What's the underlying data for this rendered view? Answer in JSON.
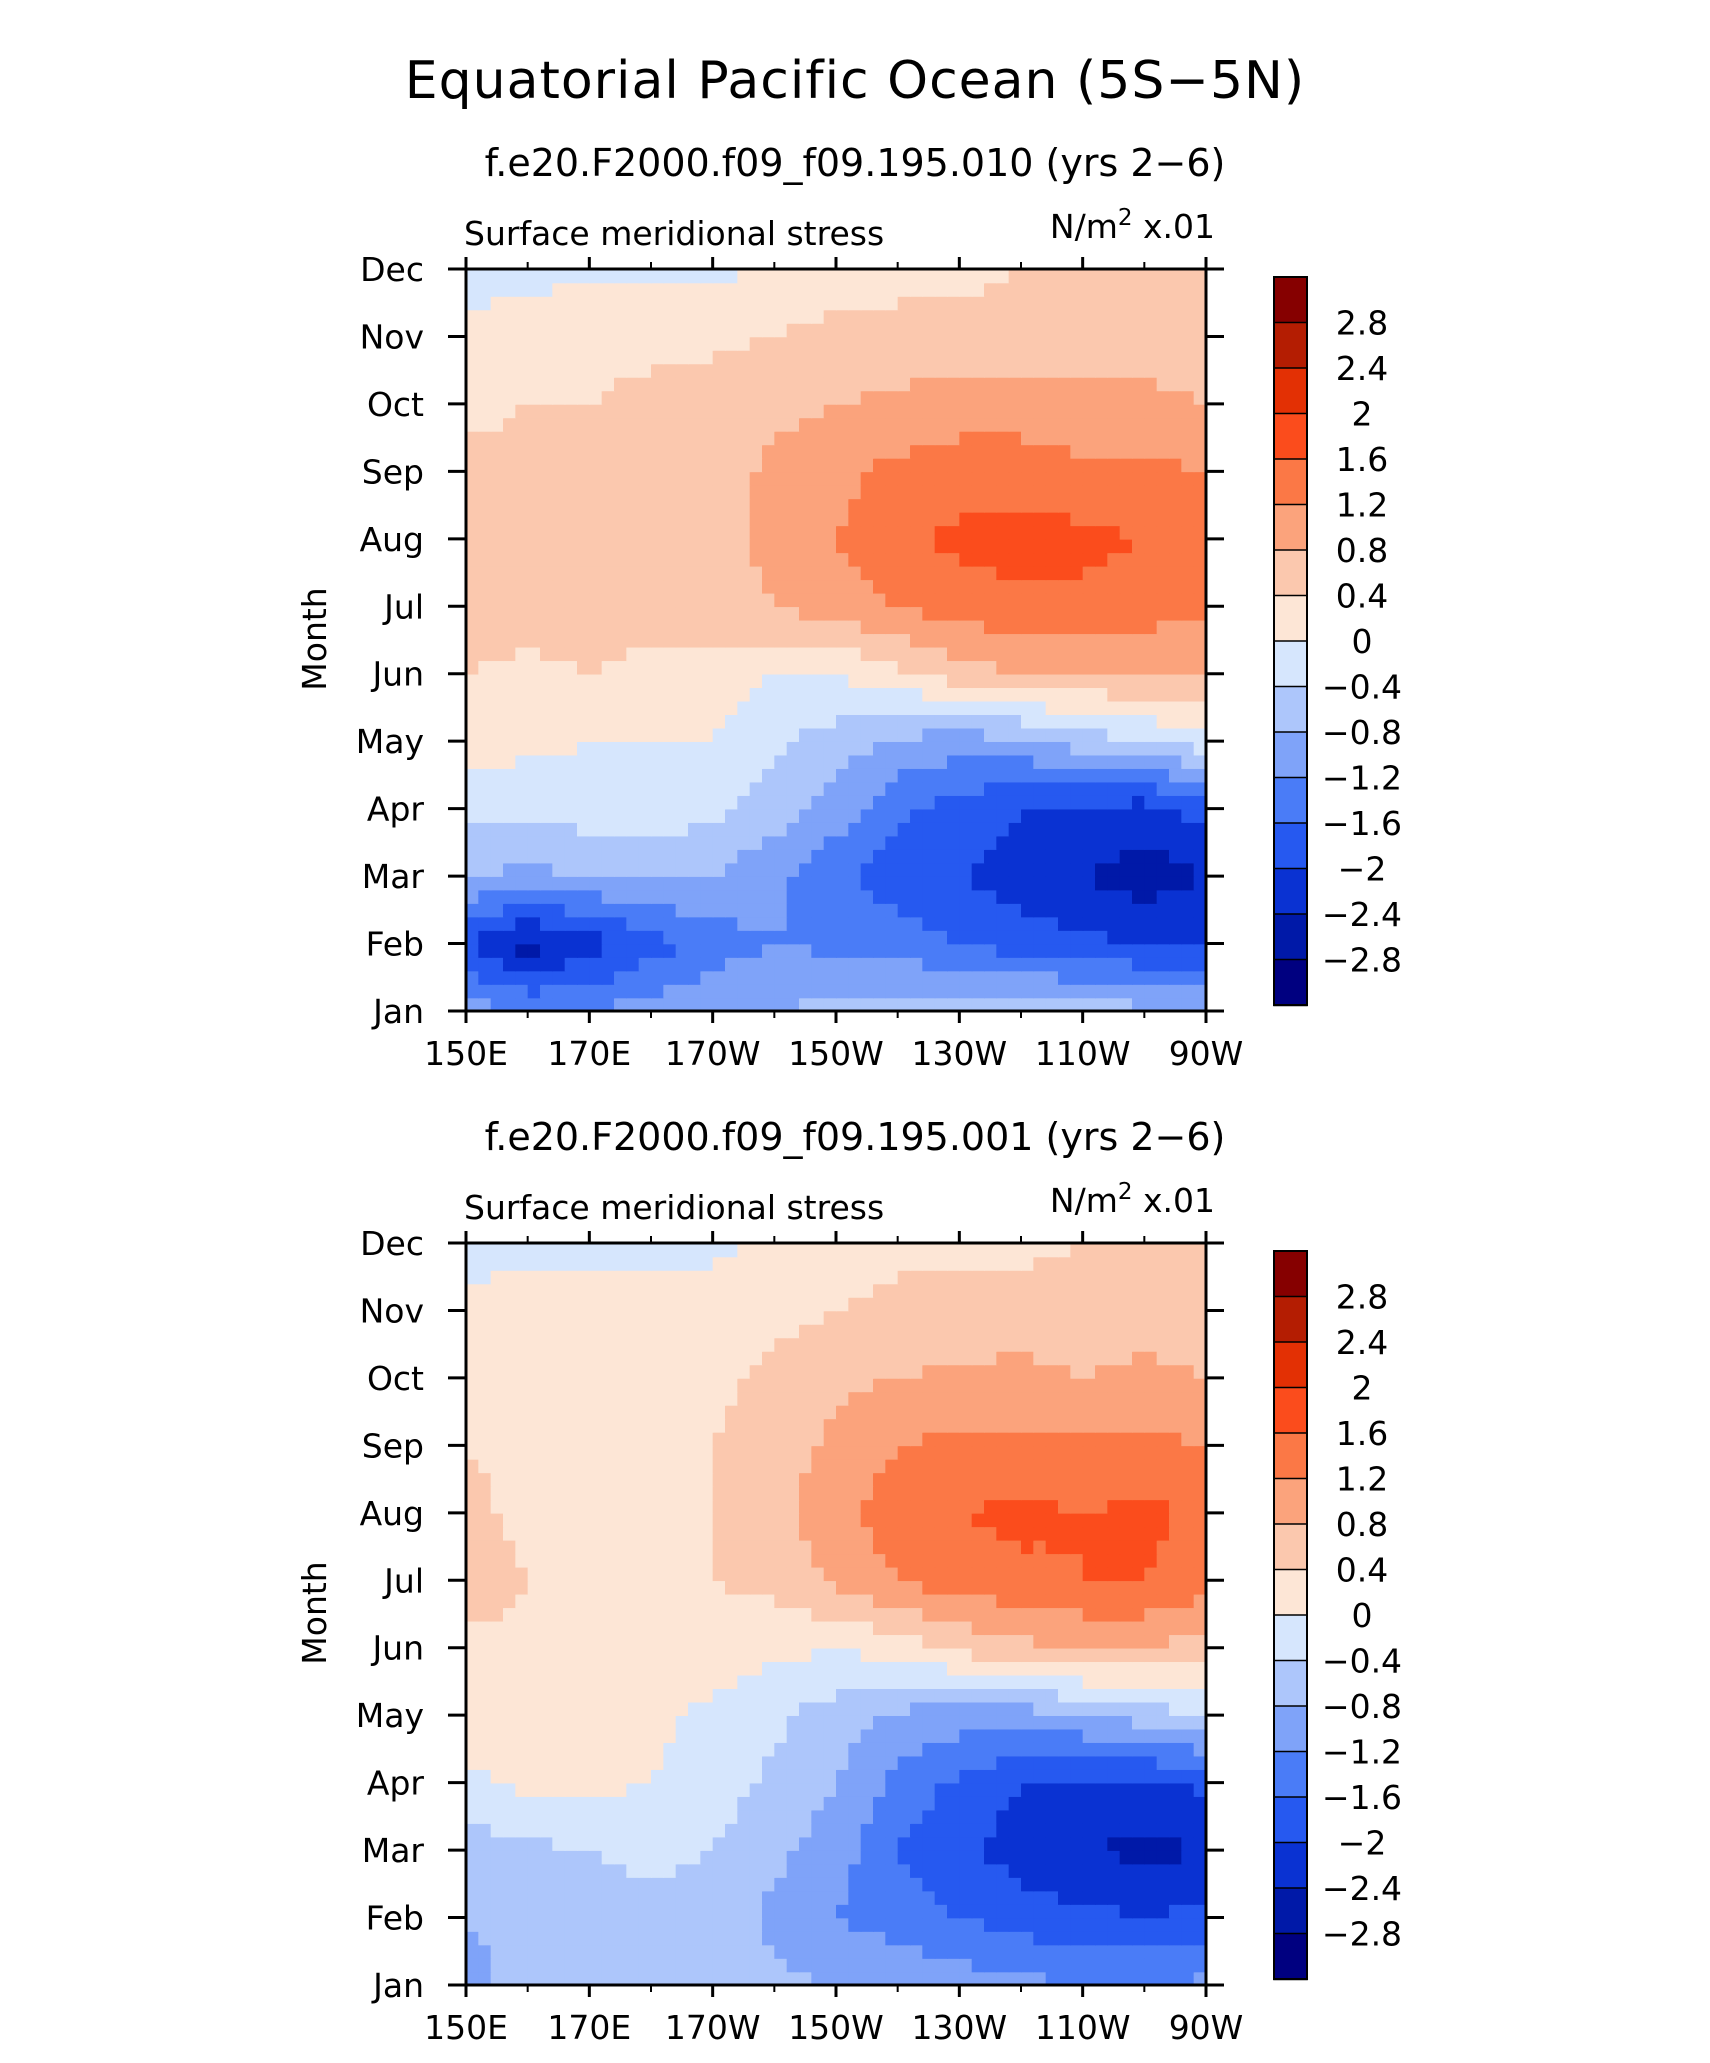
{
  "title": "Equatorial Pacific Ocean (5S−5N)",
  "colors": {
    "levels": [
      "#000080",
      "#0019a8",
      "#0a32d2",
      "#2659f0",
      "#4a7cf7",
      "#7fa3f9",
      "#adc6fb",
      "#d6e6fd",
      "#fde6d6",
      "#fbc8ae",
      "#fba37c",
      "#fb7846",
      "#fb4c1c",
      "#e33004",
      "#b41d02",
      "#860000"
    ]
  },
  "chart_data": [
    {
      "type": "heatmap",
      "title": "f.e20.F2000.f09_f09.195.010 (yrs 2−6)",
      "left_label": "Surface meridional stress",
      "units_prefix": "N/m",
      "units_sup": "2",
      "units_suffix": " x.01",
      "ylabel": "Month",
      "x_ticks": [
        "150E",
        "170E",
        "170W",
        "150W",
        "130W",
        "110W",
        "90W"
      ],
      "y_ticks": [
        "Jan",
        "Feb",
        "Mar",
        "Apr",
        "May",
        "Jun",
        "Jul",
        "Aug",
        "Sep",
        "Oct",
        "Nov",
        "Dec"
      ],
      "xlim": [
        150,
        270
      ],
      "ylim": [
        1,
        12
      ],
      "colorbar_labels": [
        "2.8",
        "2.4",
        "2",
        "1.6",
        "1.2",
        "0.8",
        "0.4",
        "0",
        "−0.4",
        "−0.8",
        "−1.2",
        "−1.6",
        "−2",
        "−2.4",
        "−2.8"
      ],
      "x": [
        150,
        160,
        170,
        180,
        190,
        200,
        210,
        220,
        230,
        240,
        250,
        260,
        270
      ],
      "y": [
        1,
        2,
        3,
        4,
        5,
        6,
        7,
        8,
        9,
        10,
        11,
        12
      ],
      "values": [
        [
          -1.0,
          -1.2,
          -1.2,
          -1.0,
          -0.9,
          -0.8,
          -0.7,
          -0.6,
          -0.5,
          -0.5,
          -0.6,
          -0.7,
          -0.8
        ],
        [
          -2.0,
          -2.6,
          -2.2,
          -1.8,
          -1.4,
          -1.2,
          -1.3,
          -1.4,
          -1.6,
          -1.8,
          -1.9,
          -2.0,
          -2.0
        ],
        [
          -0.8,
          -0.9,
          -0.8,
          -0.7,
          -0.8,
          -1.1,
          -1.5,
          -1.8,
          -2.0,
          -2.2,
          -2.4,
          -2.6,
          -2.4
        ],
        [
          -0.3,
          -0.3,
          -0.2,
          -0.2,
          -0.3,
          -0.6,
          -1.0,
          -1.5,
          -1.8,
          -2.0,
          -2.1,
          -2.2,
          -1.8
        ],
        [
          0.2,
          0.1,
          0.0,
          0.0,
          0.0,
          -0.3,
          -0.6,
          -0.9,
          -1.0,
          -0.9,
          -0.6,
          -0.4,
          -0.2
        ],
        [
          0.4,
          0.3,
          0.4,
          0.3,
          0.2,
          0.0,
          0.0,
          0.3,
          0.6,
          0.8,
          0.8,
          0.8,
          0.8
        ],
        [
          0.6,
          0.6,
          0.6,
          0.5,
          0.6,
          0.8,
          1.0,
          1.2,
          1.4,
          1.5,
          1.5,
          1.4,
          1.3
        ],
        [
          0.5,
          0.5,
          0.5,
          0.6,
          0.7,
          0.9,
          1.2,
          1.5,
          1.7,
          1.8,
          1.7,
          1.6,
          1.4
        ],
        [
          0.5,
          0.5,
          0.4,
          0.5,
          0.6,
          0.9,
          1.1,
          1.3,
          1.4,
          1.4,
          1.3,
          1.3,
          1.2
        ],
        [
          0.3,
          0.4,
          0.4,
          0.5,
          0.6,
          0.7,
          0.8,
          0.9,
          1.0,
          1.0,
          0.9,
          0.9,
          0.8
        ],
        [
          0.1,
          0.2,
          0.3,
          0.3,
          0.3,
          0.4,
          0.5,
          0.5,
          0.5,
          0.6,
          0.6,
          0.6,
          0.6
        ],
        [
          -0.2,
          -0.1,
          -0.1,
          -0.1,
          -0.1,
          0.1,
          0.2,
          0.3,
          0.3,
          0.4,
          0.5,
          0.5,
          0.5
        ]
      ]
    },
    {
      "type": "heatmap",
      "title": "f.e20.F2000.f09_f09.195.001 (yrs 2−6)",
      "left_label": "Surface meridional stress",
      "units_prefix": "N/m",
      "units_sup": "2",
      "units_suffix": " x.01",
      "ylabel": "Month",
      "x_ticks": [
        "150E",
        "170E",
        "170W",
        "150W",
        "130W",
        "110W",
        "90W"
      ],
      "y_ticks": [
        "Jan",
        "Feb",
        "Mar",
        "Apr",
        "May",
        "Jun",
        "Jul",
        "Aug",
        "Sep",
        "Oct",
        "Nov",
        "Dec"
      ],
      "xlim": [
        150,
        270
      ],
      "ylim": [
        1,
        12
      ],
      "colorbar_labels": [
        "2.8",
        "2.4",
        "2",
        "1.6",
        "1.2",
        "0.8",
        "0.4",
        "0",
        "−0.4",
        "−0.8",
        "−1.2",
        "−1.6",
        "−2",
        "−2.4",
        "−2.8"
      ],
      "x": [
        150,
        160,
        170,
        180,
        190,
        200,
        210,
        220,
        230,
        240,
        250,
        260,
        270
      ],
      "y": [
        1,
        2,
        3,
        4,
        5,
        6,
        7,
        8,
        9,
        10,
        11,
        12
      ],
      "values": [
        [
          -0.9,
          -0.7,
          -0.6,
          -0.5,
          -0.6,
          -0.7,
          -0.8,
          -0.9,
          -1.0,
          -1.1,
          -1.2,
          -1.2,
          -1.1
        ],
        [
          -0.8,
          -0.7,
          -0.6,
          -0.5,
          -0.6,
          -0.9,
          -1.2,
          -1.4,
          -1.6,
          -1.8,
          -1.9,
          -2.0,
          -1.9
        ],
        [
          -0.6,
          -0.5,
          -0.4,
          -0.3,
          -0.4,
          -0.7,
          -1.0,
          -1.6,
          -1.9,
          -2.2,
          -2.4,
          -2.5,
          -2.4
        ],
        [
          -0.1,
          0.1,
          0.1,
          0.0,
          -0.2,
          -0.5,
          -0.8,
          -1.3,
          -1.7,
          -2.0,
          -2.1,
          -2.1,
          -1.9
        ],
        [
          0.2,
          0.2,
          0.2,
          0.1,
          -0.1,
          -0.3,
          -0.6,
          -0.9,
          -1.0,
          -1.0,
          -0.8,
          -0.6,
          -0.4
        ],
        [
          0.3,
          0.3,
          0.3,
          0.3,
          0.2,
          0.1,
          0.0,
          0.2,
          0.5,
          0.7,
          0.8,
          0.8,
          0.6
        ],
        [
          0.6,
          0.4,
          0.3,
          0.3,
          0.4,
          0.5,
          0.9,
          1.2,
          1.4,
          1.5,
          1.6,
          1.6,
          1.4
        ],
        [
          0.5,
          0.3,
          0.3,
          0.3,
          0.4,
          0.6,
          1.1,
          1.4,
          1.6,
          1.7,
          1.6,
          1.7,
          1.5
        ],
        [
          0.4,
          0.3,
          0.3,
          0.3,
          0.4,
          0.6,
          0.9,
          1.2,
          1.3,
          1.3,
          1.3,
          1.3,
          1.2
        ],
        [
          0.2,
          0.2,
          0.2,
          0.3,
          0.3,
          0.5,
          0.7,
          0.8,
          0.9,
          0.9,
          0.8,
          0.9,
          0.8
        ],
        [
          0.1,
          0.2,
          0.2,
          0.2,
          0.2,
          0.3,
          0.4,
          0.5,
          0.5,
          0.6,
          0.6,
          0.6,
          0.5
        ],
        [
          -0.2,
          -0.1,
          -0.1,
          -0.1,
          -0.1,
          0.1,
          0.2,
          0.3,
          0.3,
          0.3,
          0.4,
          0.4,
          0.4
        ]
      ]
    }
  ]
}
